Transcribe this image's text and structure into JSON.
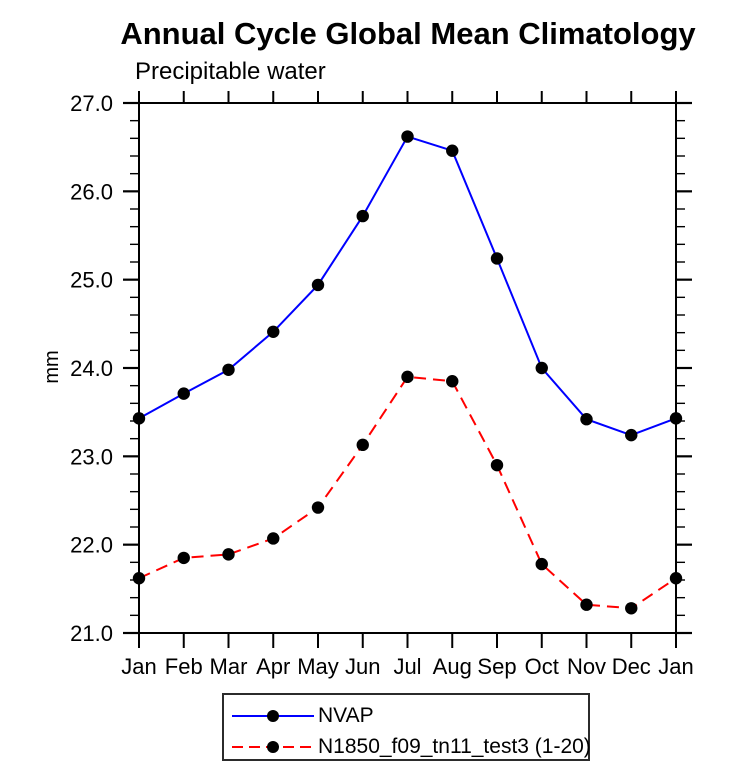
{
  "chart_data": {
    "type": "line",
    "title": "Annual Cycle Global Mean Climatology",
    "subtitle": "Precipitable water",
    "xlabel": "",
    "ylabel": "mm",
    "categories": [
      "Jan",
      "Feb",
      "Mar",
      "Apr",
      "May",
      "Jun",
      "Jul",
      "Aug",
      "Sep",
      "Oct",
      "Nov",
      "Dec",
      "Jan"
    ],
    "ylim": [
      21.0,
      27.0
    ],
    "ytick_step": 1.0,
    "ytick_minor_step": 0.2,
    "ytick_labels": [
      "21.0",
      "22.0",
      "23.0",
      "24.0",
      "25.0",
      "26.0",
      "27.0"
    ],
    "grid": false,
    "legend_position": "bottom-center",
    "axis_color": "#000000",
    "marker": "filled-circle",
    "series": [
      {
        "name": "NVAP",
        "color": "#0000ff",
        "style": "solid",
        "marker_color": "#000000",
        "values": [
          23.43,
          23.71,
          23.98,
          24.41,
          24.94,
          25.72,
          26.62,
          26.46,
          25.24,
          24.0,
          23.42,
          23.24,
          23.43
        ]
      },
      {
        "name": "N1850_f09_tn11_test3 (1-20)",
        "color": "#ff0000",
        "style": "dashed",
        "marker_color": "#000000",
        "values": [
          21.62,
          21.85,
          21.89,
          22.07,
          22.42,
          23.13,
          23.9,
          23.85,
          22.9,
          21.78,
          21.32,
          21.28,
          21.62
        ]
      }
    ]
  }
}
